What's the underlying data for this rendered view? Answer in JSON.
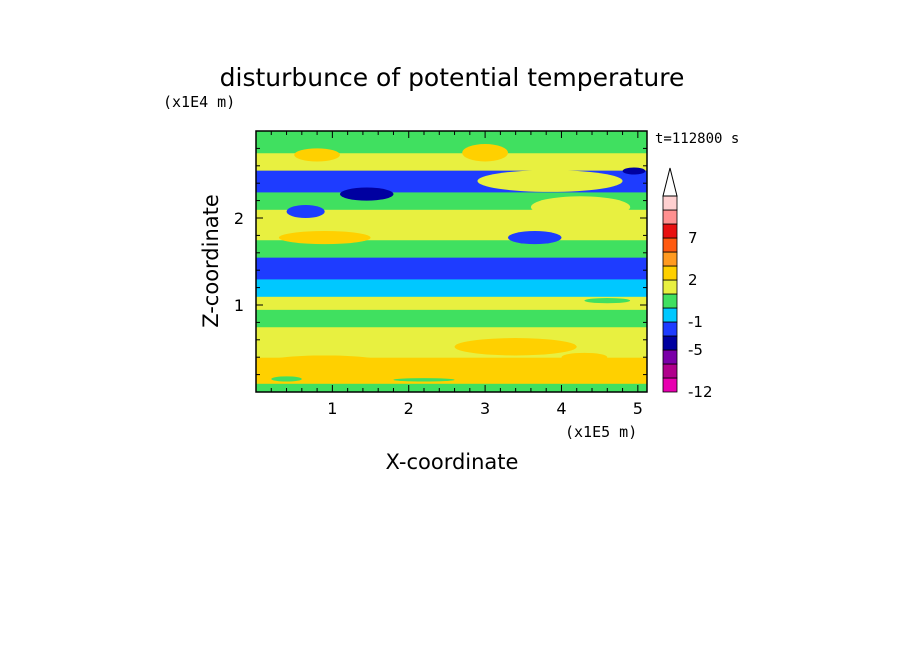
{
  "chart_data": {
    "type": "heatmap",
    "title": "disturbunce of potential temperature",
    "xlabel": "X-coordinate",
    "ylabel": "Z-coordinate",
    "x_unit": "(x1E5 m)",
    "y_unit": "(x1E4 m)",
    "time_label": "t=112800 s",
    "xlim": [
      0,
      5.12
    ],
    "ylim": [
      0,
      3.0
    ],
    "x_ticks": [
      1,
      2,
      3,
      4,
      5
    ],
    "y_ticks": [
      1,
      2
    ],
    "x_tick_labels": [
      "1",
      "2",
      "3",
      "4",
      "5"
    ],
    "y_tick_labels": [
      "1",
      "2"
    ],
    "colorbar": {
      "levels": [
        -12,
        -9,
        -7,
        -5,
        -3,
        -1,
        0,
        1,
        2,
        3,
        5,
        7,
        9,
        11
      ],
      "colors": [
        "#e800b0",
        "#b0008c",
        "#7a00a8",
        "#0000a0",
        "#1e3cff",
        "#00c8ff",
        "#40e060",
        "#e8f040",
        "#ffd000",
        "#ff9a20",
        "#ff5a10",
        "#e81010",
        "#ff9090",
        "#ffd0d0"
      ],
      "tick_labels": [
        "-12",
        "-5",
        "-1",
        "2",
        "7"
      ],
      "tick_values": [
        -12,
        -5,
        -1,
        2,
        7
      ],
      "extend": "max"
    },
    "bands": [
      {
        "z_range": [
          0.0,
          0.1
        ],
        "value": 0.5
      },
      {
        "z_range": [
          0.1,
          0.4
        ],
        "value": 2.5
      },
      {
        "z_range": [
          0.4,
          0.75
        ],
        "value": 1.5
      },
      {
        "z_range": [
          0.75,
          0.95
        ],
        "value": 0.5
      },
      {
        "z_range": [
          0.95,
          1.1
        ],
        "value": 1.5
      },
      {
        "z_range": [
          1.1,
          1.3
        ],
        "value": -0.5
      },
      {
        "z_range": [
          1.3,
          1.55
        ],
        "value": -2.0
      },
      {
        "z_range": [
          1.55,
          1.75
        ],
        "value": 0.5
      },
      {
        "z_range": [
          1.75,
          2.1
        ],
        "value": 1.5
      },
      {
        "z_range": [
          2.1,
          2.3
        ],
        "value": 0.5
      },
      {
        "z_range": [
          2.3,
          2.55
        ],
        "value": -2.0
      },
      {
        "z_range": [
          2.55,
          2.75
        ],
        "value": 1.5
      },
      {
        "z_range": [
          2.75,
          3.0
        ],
        "value": 0.5
      }
    ],
    "patches": [
      {
        "x": [
          0.2,
          1.6
        ],
        "z": [
          0.3,
          0.42
        ],
        "value": 2.5
      },
      {
        "x": [
          2.6,
          4.2
        ],
        "z": [
          0.42,
          0.62
        ],
        "value": 2.5
      },
      {
        "x": [
          4.0,
          4.6
        ],
        "z": [
          0.35,
          0.45
        ],
        "value": 2.5
      },
      {
        "x": [
          0.3,
          1.5
        ],
        "z": [
          1.7,
          1.85
        ],
        "value": 2.5
      },
      {
        "x": [
          2.9,
          4.8
        ],
        "z": [
          2.3,
          2.55
        ],
        "value": 1.5
      },
      {
        "x": [
          3.6,
          4.9
        ],
        "z": [
          2.0,
          2.25
        ],
        "value": 1.5
      },
      {
        "x": [
          3.3,
          4.0
        ],
        "z": [
          1.7,
          1.85
        ],
        "value": -2.0
      },
      {
        "x": [
          0.4,
          0.9
        ],
        "z": [
          2.0,
          2.15
        ],
        "value": -2.0
      },
      {
        "x": [
          1.1,
          1.8
        ],
        "z": [
          2.2,
          2.35
        ],
        "value": -4.0
      },
      {
        "x": [
          4.8,
          5.1
        ],
        "z": [
          2.5,
          2.58
        ],
        "value": -4.0
      },
      {
        "x": [
          2.7,
          3.3
        ],
        "z": [
          2.65,
          2.85
        ],
        "value": 2.5
      },
      {
        "x": [
          0.5,
          1.1
        ],
        "z": [
          2.65,
          2.8
        ],
        "value": 2.5
      },
      {
        "x": [
          0.2,
          0.6
        ],
        "z": [
          0.12,
          0.18
        ],
        "value": 0.5
      },
      {
        "x": [
          1.8,
          2.6
        ],
        "z": [
          0.12,
          0.16
        ],
        "value": 0.5
      },
      {
        "x": [
          4.3,
          4.9
        ],
        "z": [
          1.02,
          1.08
        ],
        "value": 0.5
      }
    ]
  }
}
